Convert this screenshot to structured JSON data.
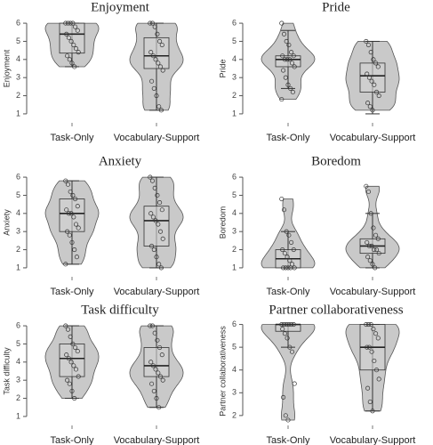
{
  "chart_data": [
    {
      "type": "violin",
      "title": "Enjoyment",
      "y_label": "Enjoyment",
      "categories": [
        "Task-Only",
        "Vocabulary-Support"
      ],
      "ylim": [
        0.8,
        6.2
      ],
      "yticks": [
        1,
        2,
        3,
        4,
        5,
        6
      ],
      "groups": [
        {
          "median": 5.4,
          "q1": 4.35,
          "q3": 6,
          "whiskers": [
            3.6,
            6
          ],
          "points": [
            6,
            6,
            6,
            6,
            5.8,
            5.6,
            5.4,
            5.2,
            5,
            4.8,
            4.6,
            4.4,
            4.2,
            4,
            3.8,
            3.6
          ]
        },
        {
          "median": 4.2,
          "q1": 3.5,
          "q3": 5.2,
          "whiskers": [
            1.2,
            6
          ],
          "points": [
            6,
            6,
            5.8,
            5.4,
            5,
            4.8,
            4.4,
            4.2,
            4,
            3.8,
            3.6,
            3.4,
            2.8,
            2.4,
            2,
            1.4,
            1.2
          ]
        }
      ]
    },
    {
      "type": "violin",
      "title": "Pride",
      "y_label": "Pride",
      "categories": [
        "Task-Only",
        "Vocabulary-Support"
      ],
      "ylim": [
        0.8,
        6.2
      ],
      "yticks": [
        1,
        2,
        3,
        4,
        5,
        6
      ],
      "groups": [
        {
          "median": 4,
          "q1": 3.6,
          "q3": 4.2,
          "whiskers": [
            2.4,
            5.6
          ],
          "points": [
            6,
            5.4,
            5,
            4.8,
            4.4,
            4.2,
            4.2,
            4,
            4,
            4,
            3.8,
            3.6,
            3.4,
            3,
            2.6,
            2.4,
            2.2,
            1.8
          ]
        },
        {
          "median": 3.1,
          "q1": 2.2,
          "q3": 3.8,
          "whiskers": [
            1,
            5
          ],
          "points": [
            5,
            4.8,
            4.4,
            4,
            3.8,
            3.6,
            3.2,
            3,
            2.8,
            2.6,
            2.2,
            2,
            1.6,
            1.4,
            1.2
          ]
        }
      ]
    },
    {
      "type": "violin",
      "title": "Anxiety",
      "y_label": "Anxiety",
      "categories": [
        "Task-Only",
        "Vocabulary-Support"
      ],
      "ylim": [
        0.8,
        6.2
      ],
      "yticks": [
        1,
        2,
        3,
        4,
        5,
        6
      ],
      "groups": [
        {
          "median": 4,
          "q1": 3,
          "q3": 4.8,
          "whiskers": [
            1.2,
            5.8
          ],
          "points": [
            5.8,
            5.6,
            5.2,
            5,
            4.8,
            4.4,
            4.2,
            4,
            4,
            3.8,
            3.4,
            3.2,
            3,
            2.8,
            2.4,
            2,
            1.6,
            1.2
          ]
        },
        {
          "median": 3.6,
          "q1": 2.2,
          "q3": 4.4,
          "whiskers": [
            1,
            6
          ],
          "points": [
            6,
            5.8,
            5.4,
            5,
            4.6,
            4.2,
            4,
            3.8,
            3.6,
            3.4,
            3,
            2.6,
            2.2,
            2,
            1.6,
            1.2,
            1
          ]
        }
      ]
    },
    {
      "type": "violin",
      "title": "Boredom",
      "y_label": "Boredom",
      "categories": [
        "Task-Only",
        "Vocabulary-Support"
      ],
      "ylim": [
        0.8,
        6.2
      ],
      "yticks": [
        1,
        2,
        3,
        4,
        5,
        6
      ],
      "groups": [
        {
          "median": 1.5,
          "q1": 1,
          "q3": 2,
          "whiskers": [
            1,
            3
          ],
          "points": [
            4.8,
            4.2,
            3,
            2.8,
            2.4,
            2,
            2,
            1.8,
            1.6,
            1.4,
            1.2,
            1,
            1,
            1,
            1,
            1
          ]
        },
        {
          "median": 2.2,
          "q1": 1.8,
          "q3": 2.6,
          "whiskers": [
            1,
            4
          ],
          "points": [
            5.5,
            5.2,
            4,
            3.2,
            2.8,
            2.6,
            2.4,
            2.2,
            2.2,
            2,
            2,
            1.8,
            1.6,
            1.4,
            1.2,
            1
          ]
        }
      ]
    },
    {
      "type": "violin",
      "title": "Task difficulty",
      "y_label": "Task difficulty",
      "categories": [
        "Task-Only",
        "Vocabulary-Support"
      ],
      "ylim": [
        0.8,
        6.2
      ],
      "yticks": [
        1,
        2,
        3,
        4,
        5,
        6
      ],
      "groups": [
        {
          "median": 4.2,
          "q1": 3.2,
          "q3": 5,
          "whiskers": [
            2,
            6
          ],
          "points": [
            6,
            5.8,
            5.4,
            5,
            4.8,
            4.6,
            4.4,
            4.2,
            4,
            3.8,
            3.6,
            3.2,
            3,
            2.8,
            2.4,
            2
          ]
        },
        {
          "median": 3.8,
          "q1": 3.2,
          "q3": 4.8,
          "whiskers": [
            1.5,
            6
          ],
          "points": [
            6,
            6,
            5.6,
            5.2,
            4.8,
            4.4,
            4,
            3.8,
            3.6,
            3.4,
            3.2,
            3,
            2.8,
            2.4,
            2,
            1.5
          ]
        }
      ]
    },
    {
      "type": "violin",
      "title": "Partner collaborativeness",
      "y_label": "Partner collaborativeness",
      "categories": [
        "Task-Only",
        "Vocabulary-Support"
      ],
      "ylim": [
        1.8,
        6.1
      ],
      "yticks": [
        2,
        3,
        4,
        5,
        6
      ],
      "groups": [
        {
          "median": 6,
          "q1": 5.7,
          "q3": 6,
          "whiskers": [
            5,
            6
          ],
          "points": [
            6,
            6,
            6,
            6,
            6,
            6,
            5.8,
            5.6,
            5.4,
            5,
            4.8,
            3.4,
            2.8,
            2,
            1.8
          ]
        },
        {
          "median": 5,
          "q1": 4,
          "q3": 6,
          "whiskers": [
            2.2,
            6
          ],
          "points": [
            6,
            6,
            6,
            5.8,
            5.6,
            5.4,
            5,
            5,
            4.8,
            4.4,
            4,
            3.6,
            3.2,
            2.6,
            2.2
          ]
        }
      ]
    }
  ]
}
